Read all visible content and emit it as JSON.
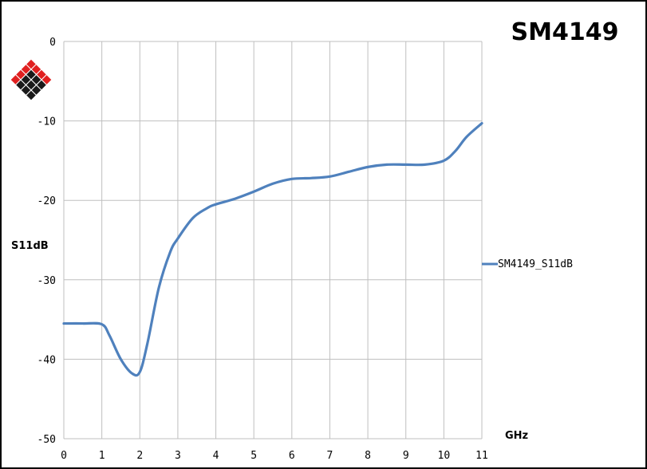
{
  "chart_data": {
    "type": "line",
    "title": "SM4149",
    "xlabel": "GHz",
    "ylabel": "S11dB",
    "xlim": [
      0,
      11
    ],
    "ylim": [
      -50,
      0
    ],
    "x_ticks": [
      0,
      1,
      2,
      3,
      4,
      5,
      6,
      7,
      8,
      9,
      10,
      11
    ],
    "y_ticks": [
      0,
      -10,
      -20,
      -30,
      -40,
      -50
    ],
    "grid": true,
    "legend_position": "right",
    "colors": {
      "series": "#4f81bd",
      "grid": "#bfbfbf",
      "logo_red": "#e02020",
      "logo_dark": "#1a1a1a"
    },
    "logo": "diamond-logo",
    "series": [
      {
        "name": "SM4149_S11dB",
        "x": [
          0,
          0.5,
          1,
          1.2,
          1.5,
          1.8,
          2.0,
          2.2,
          2.5,
          2.8,
          3,
          3.4,
          3.8,
          4,
          4.5,
          5,
          5.5,
          6,
          6.5,
          7,
          7.5,
          8,
          8.5,
          9,
          9.5,
          10,
          10.3,
          10.6,
          11
        ],
        "y": [
          -35.5,
          -35.5,
          -35.6,
          -37,
          -40,
          -41.8,
          -41.6,
          -38,
          -31,
          -26.5,
          -24.8,
          -22.2,
          -20.9,
          -20.5,
          -19.8,
          -18.9,
          -17.9,
          -17.3,
          -17.2,
          -17.0,
          -16.4,
          -15.8,
          -15.5,
          -15.5,
          -15.5,
          -15.0,
          -13.8,
          -12.0,
          -10.3
        ]
      }
    ]
  }
}
